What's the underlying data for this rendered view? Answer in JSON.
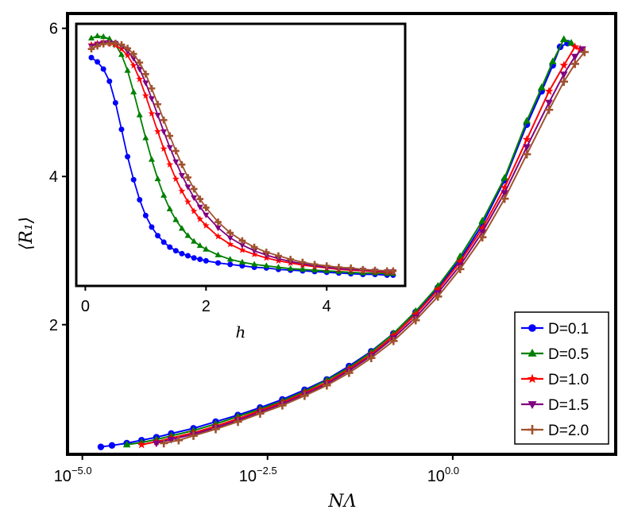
{
  "chart_data": [
    {
      "type": "line",
      "panel": "main",
      "xscale": "log10",
      "xlabel": "NΛ",
      "ylabel": "⟨R₁⟩",
      "xlim_log10": [
        -5.2,
        2.2
      ],
      "ylim": [
        0.25,
        6.2
      ],
      "xticks": [
        {
          "base": "10",
          "exp": "−5.0",
          "log10": -5.0
        },
        {
          "base": "10",
          "exp": "−2.5",
          "log10": -2.5
        },
        {
          "base": "10",
          "exp": "0.0",
          "log10": 0.0
        }
      ],
      "yticks": [
        2,
        4,
        6
      ],
      "ytick_labels": [
        "2",
        "4",
        "6"
      ],
      "legend": {
        "position": "bottom-right",
        "entries": [
          "D=0.1",
          "D=0.5",
          "D=1.0",
          "D=1.5",
          "D=2.0"
        ]
      },
      "series": [
        {
          "name": "D=0.1",
          "color": "#0000ff",
          "marker": "circle",
          "x_log10": [
            -4.75,
            -4.6,
            -4.4,
            -4.2,
            -4.0,
            -3.8,
            -3.5,
            -3.2,
            -2.9,
            -2.6,
            -2.3,
            -2.0,
            -1.7,
            -1.4,
            -1.1,
            -0.8,
            -0.5,
            -0.2,
            0.1,
            0.4,
            0.7,
            1.0,
            1.2,
            1.35,
            1.45,
            1.55
          ],
          "values": [
            0.35,
            0.37,
            0.4,
            0.44,
            0.48,
            0.53,
            0.6,
            0.69,
            0.78,
            0.88,
            0.99,
            1.12,
            1.26,
            1.44,
            1.64,
            1.88,
            2.17,
            2.5,
            2.88,
            3.35,
            3.95,
            4.7,
            5.15,
            5.5,
            5.75,
            5.8
          ]
        },
        {
          "name": "D=0.5",
          "color": "#008000",
          "marker": "triangle-up",
          "x_log10": [
            -4.4,
            -4.2,
            -4.0,
            -3.8,
            -3.5,
            -3.2,
            -2.9,
            -2.6,
            -2.3,
            -2.0,
            -1.7,
            -1.4,
            -1.1,
            -0.8,
            -0.5,
            -0.2,
            0.1,
            0.4,
            0.7,
            1.0,
            1.2,
            1.35,
            1.5,
            1.6
          ],
          "values": [
            0.38,
            0.41,
            0.45,
            0.5,
            0.57,
            0.66,
            0.76,
            0.86,
            0.97,
            1.1,
            1.25,
            1.42,
            1.63,
            1.88,
            2.18,
            2.52,
            2.92,
            3.4,
            3.98,
            4.75,
            5.2,
            5.55,
            5.85,
            5.8
          ]
        },
        {
          "name": "D=1.0",
          "color": "#ff0000",
          "marker": "star",
          "x_log10": [
            -4.2,
            -4.0,
            -3.8,
            -3.5,
            -3.2,
            -2.9,
            -2.6,
            -2.3,
            -2.0,
            -1.7,
            -1.4,
            -1.1,
            -0.8,
            -0.5,
            -0.2,
            0.1,
            0.4,
            0.7,
            1.0,
            1.3,
            1.5,
            1.65,
            1.72
          ],
          "values": [
            0.38,
            0.42,
            0.47,
            0.54,
            0.63,
            0.73,
            0.84,
            0.95,
            1.08,
            1.22,
            1.4,
            1.6,
            1.85,
            2.14,
            2.47,
            2.85,
            3.3,
            3.85,
            4.5,
            5.15,
            5.5,
            5.75,
            5.72
          ]
        },
        {
          "name": "D=1.5",
          "color": "#800080",
          "marker": "triangle-down",
          "x_log10": [
            -4.0,
            -3.8,
            -3.5,
            -3.2,
            -2.9,
            -2.6,
            -2.3,
            -2.0,
            -1.7,
            -1.4,
            -1.1,
            -0.8,
            -0.5,
            -0.2,
            0.1,
            0.4,
            0.7,
            1.0,
            1.3,
            1.5,
            1.65,
            1.75
          ],
          "values": [
            0.4,
            0.45,
            0.52,
            0.61,
            0.71,
            0.82,
            0.93,
            1.06,
            1.2,
            1.38,
            1.58,
            1.82,
            2.1,
            2.43,
            2.8,
            3.25,
            3.78,
            4.4,
            5.0,
            5.38,
            5.62,
            5.72
          ]
        },
        {
          "name": "D=2.0",
          "color": "#a0522d",
          "marker": "plus",
          "x_log10": [
            -3.9,
            -3.7,
            -3.5,
            -3.2,
            -2.9,
            -2.6,
            -2.3,
            -2.0,
            -1.7,
            -1.4,
            -1.1,
            -0.8,
            -0.5,
            -0.2,
            0.1,
            0.4,
            0.7,
            1.0,
            1.3,
            1.5,
            1.65,
            1.78
          ],
          "values": [
            0.4,
            0.44,
            0.5,
            0.59,
            0.69,
            0.8,
            0.91,
            1.04,
            1.18,
            1.35,
            1.55,
            1.78,
            2.06,
            2.38,
            2.75,
            3.18,
            3.7,
            4.3,
            4.9,
            5.28,
            5.52,
            5.68
          ]
        }
      ]
    },
    {
      "type": "line",
      "panel": "inset",
      "xlabel": "h",
      "ylabel": "",
      "xlim": [
        -0.15,
        5.3
      ],
      "ylim": [
        2.4,
        6.05
      ],
      "xticks": [
        0,
        2,
        4
      ],
      "xtick_labels": [
        "0",
        "2",
        "4"
      ],
      "series": [
        {
          "name": "D=0.1",
          "color": "#0000ff",
          "marker": "circle",
          "x": [
            0.1,
            0.2,
            0.3,
            0.4,
            0.5,
            0.6,
            0.7,
            0.8,
            0.9,
            1.0,
            1.1,
            1.2,
            1.3,
            1.4,
            1.5,
            1.6,
            1.7,
            1.8,
            1.9,
            2.0,
            2.2,
            2.4,
            2.6,
            2.8,
            3.0,
            3.2,
            3.4,
            3.6,
            3.8,
            4.0,
            4.2,
            4.4,
            4.6,
            4.8,
            5.0,
            5.1
          ],
          "values": [
            5.58,
            5.52,
            5.42,
            5.25,
            4.95,
            4.58,
            4.2,
            3.88,
            3.6,
            3.38,
            3.22,
            3.1,
            3.01,
            2.94,
            2.89,
            2.85,
            2.82,
            2.79,
            2.77,
            2.75,
            2.72,
            2.7,
            2.68,
            2.66,
            2.65,
            2.63,
            2.62,
            2.61,
            2.6,
            2.59,
            2.58,
            2.57,
            2.56,
            2.56,
            2.55,
            2.55
          ]
        },
        {
          "name": "D=0.5",
          "color": "#008000",
          "marker": "triangle-up",
          "x": [
            0.1,
            0.2,
            0.3,
            0.4,
            0.5,
            0.6,
            0.7,
            0.8,
            0.9,
            1.0,
            1.1,
            1.2,
            1.3,
            1.4,
            1.5,
            1.6,
            1.7,
            1.8,
            1.9,
            2.0,
            2.2,
            2.4,
            2.6,
            2.8,
            3.0,
            3.2,
            3.4,
            3.6,
            3.8,
            4.0,
            4.2,
            4.4,
            4.6,
            4.8,
            5.0,
            5.1
          ],
          "values": [
            5.85,
            5.88,
            5.87,
            5.84,
            5.76,
            5.62,
            5.4,
            5.1,
            4.78,
            4.46,
            4.16,
            3.89,
            3.66,
            3.47,
            3.32,
            3.2,
            3.1,
            3.02,
            2.96,
            2.91,
            2.83,
            2.77,
            2.73,
            2.7,
            2.68,
            2.66,
            2.64,
            2.63,
            2.62,
            2.61,
            2.6,
            2.59,
            2.58,
            2.58,
            2.57,
            2.57
          ]
        },
        {
          "name": "D=1.0",
          "color": "#ff0000",
          "marker": "star",
          "x": [
            0.1,
            0.2,
            0.3,
            0.4,
            0.5,
            0.6,
            0.7,
            0.8,
            0.9,
            1.0,
            1.1,
            1.2,
            1.3,
            1.4,
            1.5,
            1.6,
            1.7,
            1.8,
            1.9,
            2.0,
            2.2,
            2.4,
            2.6,
            2.8,
            3.0,
            3.2,
            3.4,
            3.6,
            3.8,
            4.0,
            4.2,
            4.4,
            4.6,
            4.8,
            5.0,
            5.1
          ],
          "values": [
            5.76,
            5.78,
            5.79,
            5.78,
            5.75,
            5.7,
            5.61,
            5.47,
            5.28,
            5.05,
            4.8,
            4.55,
            4.31,
            4.09,
            3.89,
            3.72,
            3.57,
            3.44,
            3.33,
            3.24,
            3.09,
            2.98,
            2.9,
            2.84,
            2.79,
            2.75,
            2.72,
            2.69,
            2.67,
            2.65,
            2.63,
            2.62,
            2.61,
            2.6,
            2.59,
            2.59
          ]
        },
        {
          "name": "D=1.5",
          "color": "#800080",
          "marker": "triangle-down",
          "x": [
            0.1,
            0.2,
            0.3,
            0.4,
            0.5,
            0.6,
            0.7,
            0.8,
            0.9,
            1.0,
            1.1,
            1.2,
            1.3,
            1.4,
            1.5,
            1.6,
            1.7,
            1.8,
            1.9,
            2.0,
            2.2,
            2.4,
            2.6,
            2.8,
            3.0,
            3.2,
            3.4,
            3.6,
            3.8,
            4.0,
            4.2,
            4.4,
            4.6,
            4.8,
            5.0,
            5.1
          ],
          "values": [
            5.74,
            5.77,
            5.79,
            5.79,
            5.78,
            5.74,
            5.67,
            5.57,
            5.42,
            5.23,
            5.01,
            4.78,
            4.55,
            4.33,
            4.13,
            3.94,
            3.78,
            3.63,
            3.5,
            3.39,
            3.21,
            3.07,
            2.97,
            2.89,
            2.83,
            2.78,
            2.74,
            2.71,
            2.68,
            2.66,
            2.64,
            2.63,
            2.62,
            2.61,
            2.6,
            2.6
          ]
        },
        {
          "name": "D=2.0",
          "color": "#a0522d",
          "marker": "plus",
          "x": [
            0.1,
            0.2,
            0.3,
            0.4,
            0.5,
            0.6,
            0.7,
            0.8,
            0.9,
            1.0,
            1.1,
            1.2,
            1.3,
            1.4,
            1.5,
            1.6,
            1.7,
            1.8,
            1.9,
            2.0,
            2.2,
            2.4,
            2.6,
            2.8,
            3.0,
            3.2,
            3.4,
            3.6,
            3.8,
            4.0,
            4.2,
            4.4,
            4.6,
            4.8,
            5.0,
            5.1
          ],
          "values": [
            5.7,
            5.74,
            5.77,
            5.78,
            5.78,
            5.76,
            5.71,
            5.63,
            5.51,
            5.35,
            5.15,
            4.93,
            4.71,
            4.49,
            4.28,
            4.09,
            3.91,
            3.75,
            3.61,
            3.49,
            3.29,
            3.14,
            3.03,
            2.94,
            2.87,
            2.82,
            2.77,
            2.73,
            2.7,
            2.68,
            2.66,
            2.65,
            2.63,
            2.62,
            2.61,
            2.61
          ]
        }
      ]
    }
  ]
}
